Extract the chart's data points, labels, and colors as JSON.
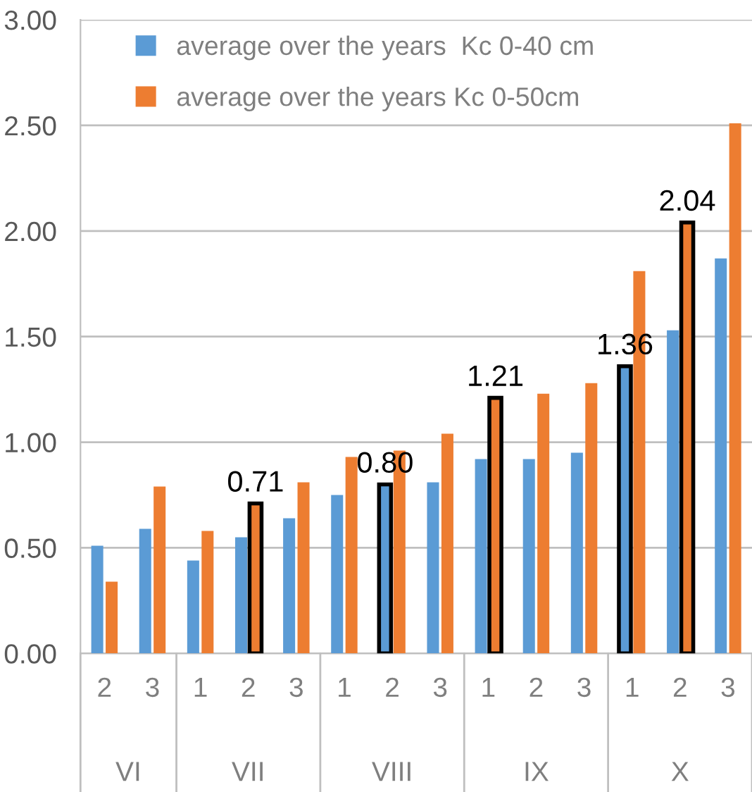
{
  "chart_data": {
    "type": "bar",
    "categories": [
      "2",
      "3",
      "1",
      "2",
      "3",
      "1",
      "2",
      "3",
      "1",
      "2",
      "3",
      "1",
      "2",
      "3"
    ],
    "series": [
      {
        "name": "average over the years  Kc 0-40 cm",
        "color": "#5b9bd5",
        "values": [
          0.51,
          0.59,
          0.44,
          0.55,
          0.64,
          0.75,
          0.8,
          0.81,
          0.92,
          0.92,
          0.95,
          1.36,
          1.53,
          1.87
        ],
        "value_labels": [
          null,
          null,
          null,
          null,
          null,
          null,
          "0.80",
          null,
          null,
          null,
          null,
          "1.36",
          null,
          null
        ]
      },
      {
        "name": "average over the years Kc 0-50cm",
        "color": "#ed7d31",
        "values": [
          0.34,
          0.79,
          0.58,
          0.71,
          0.81,
          0.93,
          0.96,
          1.04,
          1.21,
          1.23,
          1.28,
          1.81,
          2.04,
          2.51
        ],
        "value_labels": [
          null,
          null,
          null,
          "0.71",
          null,
          null,
          null,
          null,
          "1.21",
          null,
          null,
          null,
          "2.04",
          null
        ]
      }
    ],
    "annotations": [
      "VI",
      "VII",
      "VIII",
      "IX",
      "X"
    ],
    "ylim": [
      0,
      3
    ],
    "yticks": [
      {
        "value": 0,
        "label": "0.00"
      },
      {
        "value": 0.5,
        "label": "0.50"
      },
      {
        "value": 1,
        "label": "1.00"
      },
      {
        "value": 1.5,
        "label": "1.50"
      },
      {
        "value": 2,
        "label": "2.00"
      },
      {
        "value": 2.5,
        "label": "2.50"
      },
      {
        "value": 3,
        "label": "3.00"
      }
    ],
    "grid": "y",
    "legend": "top left"
  }
}
